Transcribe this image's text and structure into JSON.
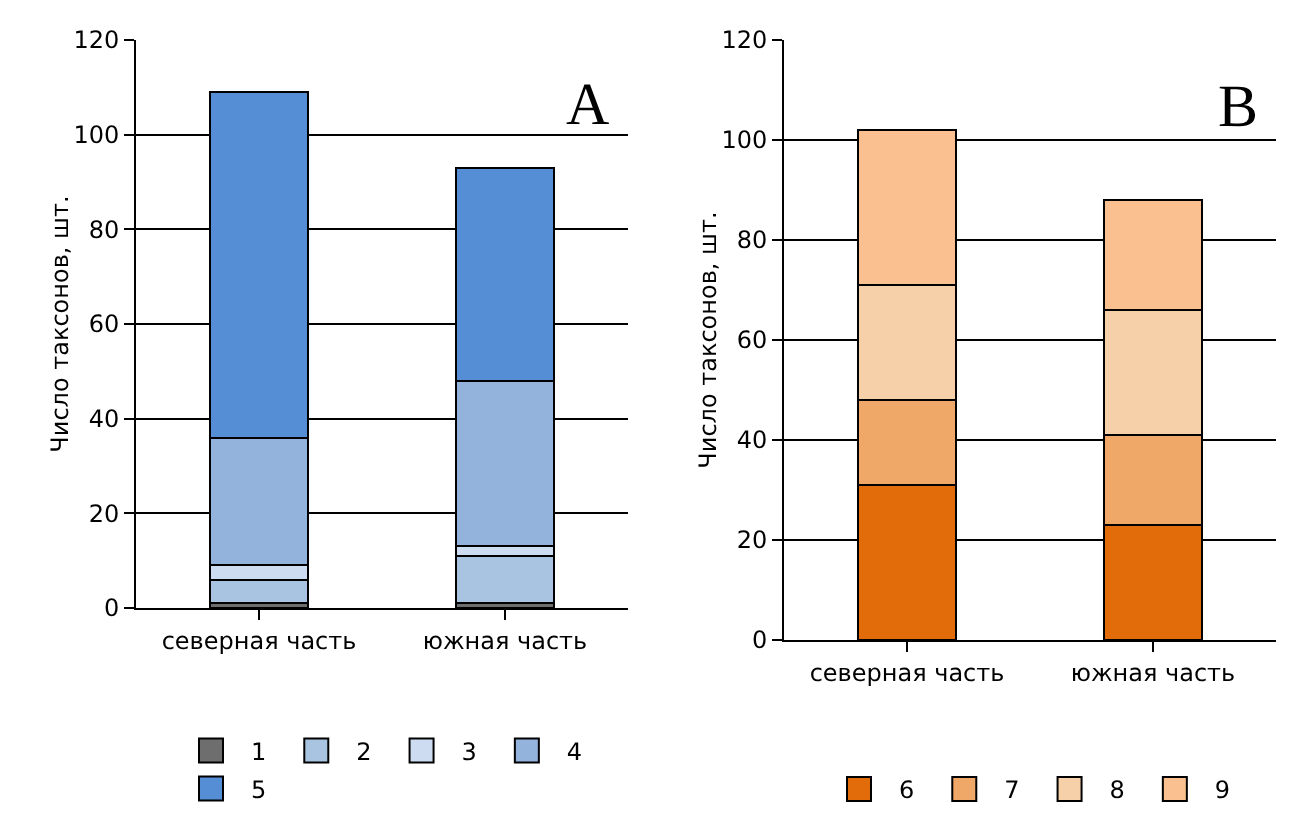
{
  "chart_data": [
    {
      "type": "bar",
      "stacked": true,
      "annotations": [
        "А"
      ],
      "ylabel": "Число таксонов, шт.",
      "categories": [
        "северная часть",
        "южная часть"
      ],
      "ylim": [
        0,
        120
      ],
      "yticks": [
        0,
        20,
        40,
        60,
        80,
        100,
        120
      ],
      "grid": "y",
      "legend": "bottom",
      "series": [
        {
          "name": "1",
          "color": "#6e6e6e",
          "values": [
            1,
            1
          ]
        },
        {
          "name": "2",
          "color": "#a9c4e0",
          "values": [
            5,
            10
          ]
        },
        {
          "name": "3",
          "color": "#cddcf0",
          "values": [
            3,
            2
          ]
        },
        {
          "name": "4",
          "color": "#93b3dd",
          "values": [
            27,
            35
          ]
        },
        {
          "name": "5",
          "color": "#558ed5",
          "values": [
            73,
            45
          ]
        }
      ]
    },
    {
      "type": "bar",
      "stacked": true,
      "annotations": [
        "В"
      ],
      "ylabel": "Число таксонов, шт.",
      "categories": [
        "северная часть",
        "южная часть"
      ],
      "ylim": [
        0,
        120
      ],
      "yticks": [
        0,
        20,
        40,
        60,
        80,
        100,
        120
      ],
      "grid": "y",
      "legend": "bottom",
      "series": [
        {
          "name": "6",
          "color": "#e36c0a",
          "values": [
            31,
            23
          ]
        },
        {
          "name": "7",
          "color": "#f0a868",
          "values": [
            17,
            18
          ]
        },
        {
          "name": "8",
          "color": "#f5d0a8",
          "values": [
            23,
            25
          ]
        },
        {
          "name": "9",
          "color": "#fac090",
          "values": [
            31,
            22
          ]
        }
      ]
    }
  ]
}
